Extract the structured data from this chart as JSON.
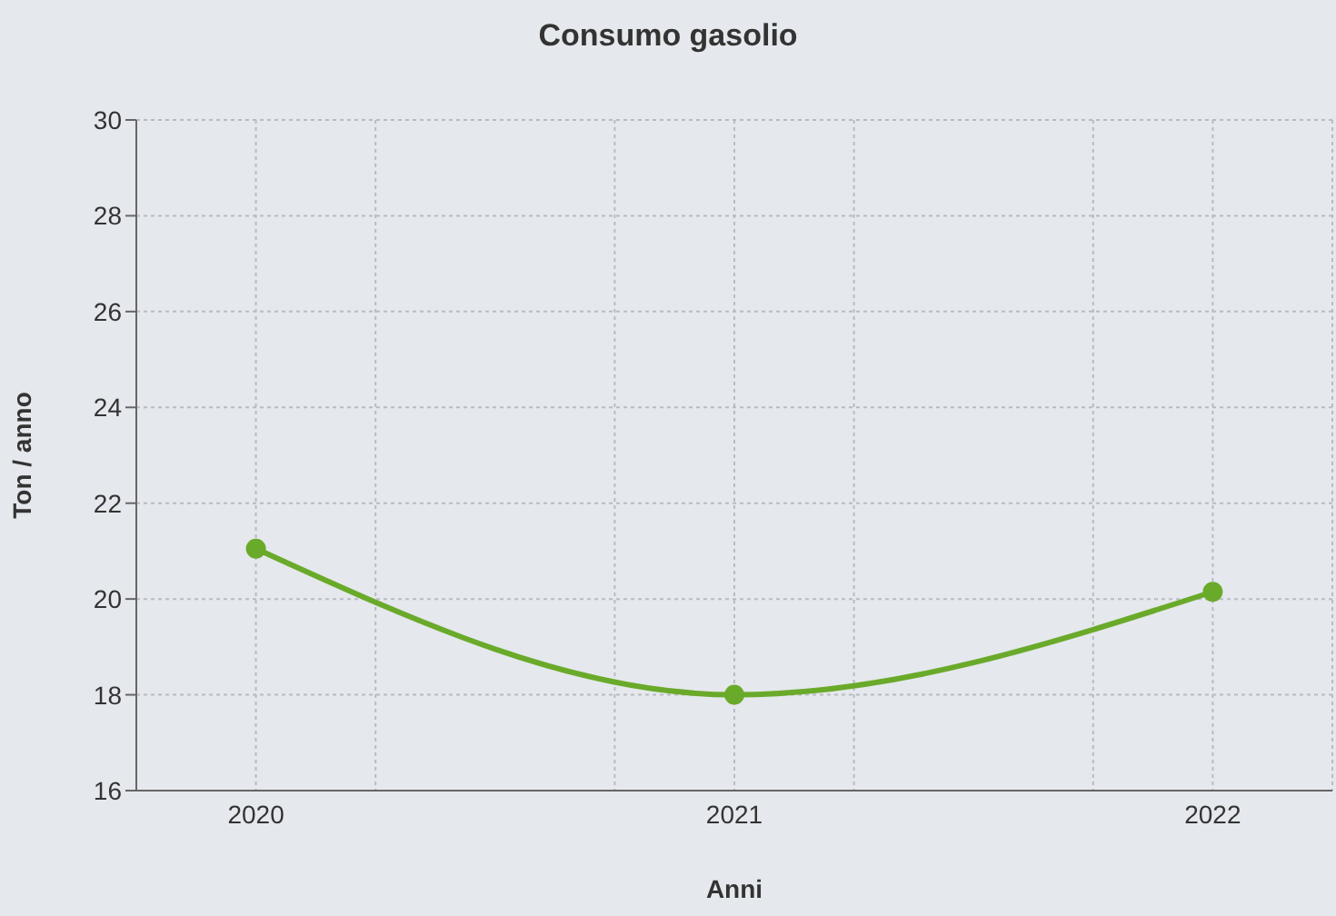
{
  "chart_data": {
    "type": "line",
    "title": "Consumo gasolio",
    "xlabel": "Anni",
    "ylabel": "Ton / anno",
    "x": [
      2020,
      2021,
      2022
    ],
    "series": [
      {
        "color": "#6aaa2a",
        "values": [
          21.05,
          18.0,
          20.15
        ]
      }
    ],
    "xlim": [
      2019.75,
      2022.25
    ],
    "xticks": [
      2020,
      {
        "value": 2020.25,
        "label": null
      },
      {
        "value": 2020.75,
        "label": null
      },
      2021,
      {
        "value": 2021.25,
        "label": null
      },
      {
        "value": 2021.75,
        "label": null
      },
      2022
    ],
    "ylim": [
      16,
      30
    ],
    "yticks": [
      16,
      18,
      20,
      22,
      24,
      26,
      28,
      30
    ],
    "grid": true,
    "marker": "circle",
    "line_style": "solid",
    "legend": false
  }
}
